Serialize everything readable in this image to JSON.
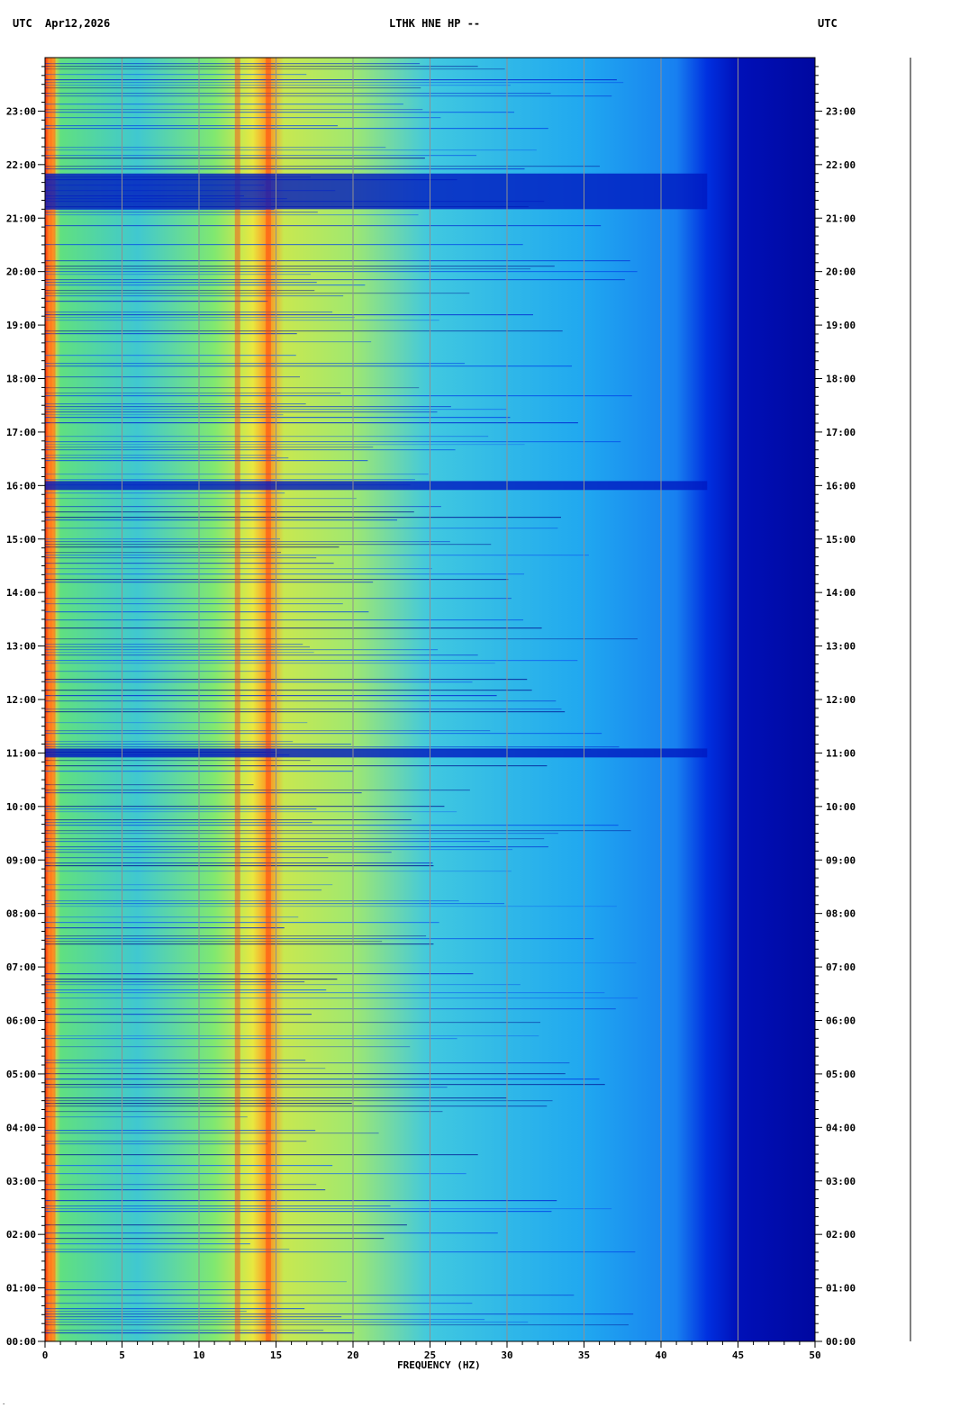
{
  "header": {
    "left_utc": "UTC",
    "date": "Apr12,2026",
    "station": "LTHK HNE HP --",
    "right_utc": "UTC"
  },
  "chart_data": {
    "type": "heatmap",
    "title": "LTHK HNE HP --",
    "xlabel": "FREQUENCY (HZ)",
    "ylabel": "UTC",
    "xlim": [
      0,
      50
    ],
    "ylim_hours": [
      0,
      24
    ],
    "x_ticks": [
      "0",
      "5",
      "10",
      "15",
      "20",
      "25",
      "30",
      "35",
      "40",
      "45",
      "50"
    ],
    "y_ticks": [
      "00:00",
      "01:00",
      "02:00",
      "03:00",
      "04:00",
      "05:00",
      "06:00",
      "07:00",
      "08:00",
      "09:00",
      "10:00",
      "11:00",
      "12:00",
      "13:00",
      "14:00",
      "15:00",
      "16:00",
      "17:00",
      "18:00",
      "19:00",
      "20:00",
      "21:00",
      "22:00",
      "23:00"
    ],
    "grid": true,
    "colormap": [
      "#00008b",
      "#0000ff",
      "#0080ff",
      "#00c8ff",
      "#40e0d0",
      "#80ff80",
      "#ffff00",
      "#ff8000",
      "#ff0000"
    ],
    "energy_rolloff_hz": 43,
    "persistent_bands_hz": [
      0.5,
      12.5,
      14.5
    ],
    "quiet_intervals_utc": [
      "21:10-21:50",
      "15:55-16:05",
      "10:55-11:05"
    ]
  }
}
